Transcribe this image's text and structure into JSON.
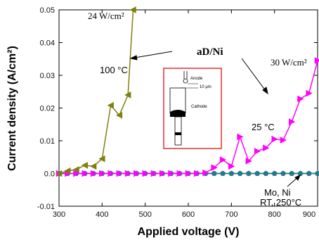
{
  "chart_data": {
    "type": "line",
    "xlabel": "Applied voltage (V)",
    "ylabel": "Current density (A/cm²)",
    "xlim": [
      300,
      900
    ],
    "ylim": [
      -0.01,
      0.05
    ],
    "xticks": [
      "300",
      "400",
      "500",
      "600",
      "700",
      "800",
      "900"
    ],
    "yticks": [
      "-0.01",
      "0.0",
      "0.01",
      "0.02",
      "0.03",
      "0.04",
      "0.05"
    ],
    "grid": false,
    "series": [
      {
        "color": "#7f7f10",
        "marker": "triangle-left",
        "x": [
          300,
          320,
          340,
          360,
          380,
          400,
          420,
          440,
          460,
          472
        ],
        "y": [
          0.0,
          0.0008,
          0.0012,
          0.0025,
          0.0022,
          0.0045,
          0.0208,
          0.0178,
          0.024,
          0.05
        ]
      },
      {
        "color": "#ff00ff",
        "marker": "triangle-right",
        "x": [
          300,
          320,
          340,
          360,
          380,
          400,
          420,
          440,
          460,
          480,
          500,
          520,
          540,
          560,
          580,
          600,
          620,
          640,
          660,
          680,
          700,
          720,
          740,
          760,
          780,
          800,
          820,
          840,
          860,
          880,
          900
        ],
        "y": [
          0.0,
          0.0,
          0.0,
          0.0,
          0.0,
          0.0,
          0.0,
          0.0,
          0.0,
          0.0,
          0.0,
          0.0,
          0.0,
          0.0,
          0.0,
          0.0,
          0.0,
          0.0002,
          0.0018,
          0.0042,
          0.0022,
          0.0112,
          0.0038,
          0.0068,
          0.0078,
          0.0105,
          0.0102,
          0.0158,
          0.0228,
          0.0245,
          0.0345
        ]
      },
      {
        "color": "#1f4fb0",
        "marker": "circle",
        "x": [
          300,
          320,
          340,
          360,
          380,
          400,
          420,
          440,
          460,
          480,
          500,
          520,
          540,
          560,
          580,
          600,
          620,
          640,
          660,
          680,
          700,
          720,
          740,
          760,
          780,
          800,
          820,
          840,
          860,
          880,
          900
        ],
        "y": [
          0.0,
          0.0,
          0.0,
          0.0,
          0.0,
          0.0,
          0.0,
          0.0,
          0.0,
          0.0,
          0.0,
          0.0,
          0.0,
          0.0,
          0.0,
          0.0,
          0.0,
          0.0,
          0.0,
          0.0,
          0.0,
          0.0,
          0.0,
          0.0,
          0.0,
          0.0,
          0.0,
          0.0,
          0.0,
          0.0,
          0.0
        ]
      },
      {
        "color": "#208080",
        "marker": "star",
        "x": [
          300,
          320,
          340,
          360,
          380,
          400,
          420,
          440,
          460,
          480,
          500,
          520,
          540,
          560,
          580,
          600,
          620,
          640,
          660,
          680,
          700,
          720,
          740,
          760,
          780,
          800,
          820,
          840,
          860,
          880,
          900
        ],
        "y": [
          0.0,
          0.0,
          0.0,
          0.0,
          0.0,
          0.0,
          0.0,
          0.0,
          0.0,
          0.0,
          0.0,
          0.0,
          0.0,
          0.0,
          0.0,
          0.0,
          0.0,
          0.0,
          0.0,
          0.0,
          0.0,
          0.0,
          0.0,
          0.0,
          0.0,
          0.0,
          0.0,
          0.0,
          0.0,
          0.0,
          0.0
        ]
      }
    ],
    "annotations": {
      "label_24": "24 W/cm²",
      "label_100c": "100 °C",
      "label_adni": "aD/Ni",
      "label_30": "30 W/cm²",
      "label_25c": "25 °C",
      "label_mo_ni": "Mo, Ni",
      "label_rt": "RT, 250°C"
    },
    "inset": {
      "anode": "Anode",
      "gap": "10 μm",
      "cathode": "Cathode",
      "border_color": "#e03030"
    }
  }
}
